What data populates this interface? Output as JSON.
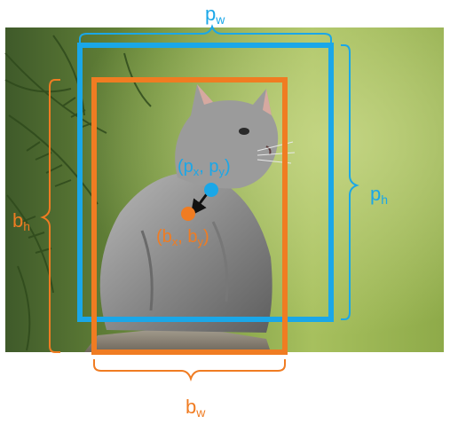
{
  "colors": {
    "prior": "#1aa7e8",
    "predicted": "#f07c22",
    "arrow": "#111111"
  },
  "photo": {
    "subject_icon": "kitten-photo"
  },
  "labels": {
    "pw": {
      "base": "p",
      "sub": "w"
    },
    "ph": {
      "base": "p",
      "sub": "h"
    },
    "bw": {
      "base": "b",
      "sub": "w"
    },
    "bh": {
      "base": "b",
      "sub": "h"
    },
    "prior_center": {
      "open": "(",
      "x_base": "p",
      "x_sub": "x",
      "sep": ", ",
      "y_base": "p",
      "y_sub": "y",
      "close": ")"
    },
    "pred_center": {
      "open": "(",
      "x_base": "b",
      "x_sub": "x",
      "sep": ", ",
      "y_base": "b",
      "y_sub": "y",
      "close": ")"
    }
  }
}
